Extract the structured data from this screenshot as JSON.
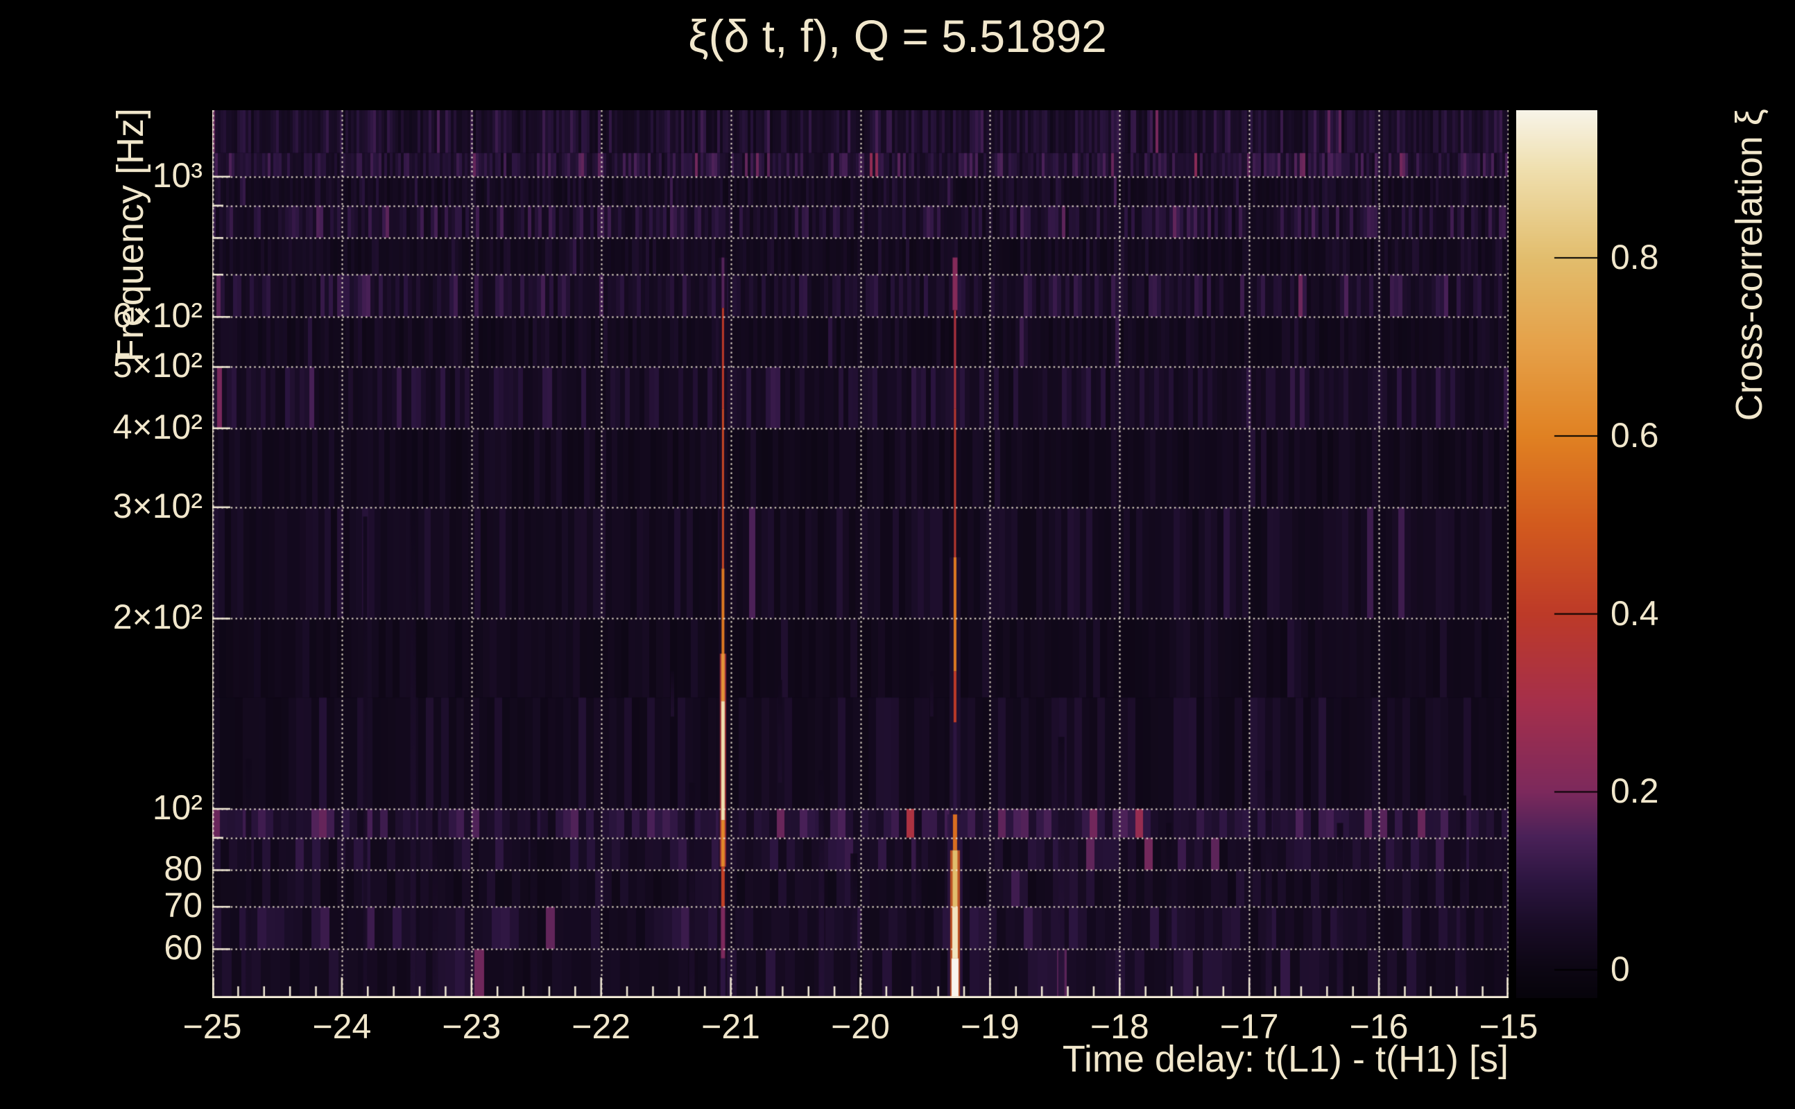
{
  "title": "ξ(δ t, f), Q = 5.51892",
  "colors": {
    "background": "#000000",
    "text": "#f1e7cc",
    "grid": "#f3ebd6",
    "colorbar_tick": "#000000"
  },
  "chart_data": {
    "type": "heatmap",
    "title": "ξ(δ t, f), Q = 5.51892",
    "xlabel": "Time delay: t(L1) - t(H1) [s]",
    "ylabel": "Frequency [Hz]",
    "colorbar_label": "Cross-correlation ξ",
    "x_range": [
      -25,
      -15
    ],
    "x_minor_step": 0.2,
    "x_tick_labels": [
      {
        "t": -25,
        "label": "−25"
      },
      {
        "t": -24,
        "label": "−24"
      },
      {
        "t": -23,
        "label": "−23"
      },
      {
        "t": -22,
        "label": "−22"
      },
      {
        "t": -21,
        "label": "−21"
      },
      {
        "t": -20,
        "label": "−20"
      },
      {
        "t": -19,
        "label": "−19"
      },
      {
        "t": -18,
        "label": "−18"
      },
      {
        "t": -17,
        "label": "−17"
      },
      {
        "t": -16,
        "label": "−16"
      },
      {
        "t": -15,
        "label": "−15"
      }
    ],
    "y_scale": "log",
    "y_range": [
      50.2,
      1274
    ],
    "y_gridlines": [
      1000,
      900,
      800,
      700,
      600,
      500,
      400,
      300,
      200,
      100,
      90,
      80,
      70,
      60
    ],
    "y_tick_labels": [
      {
        "f": 1000,
        "label": "10³"
      },
      {
        "f": 600,
        "label": "6×10²"
      },
      {
        "f": 500,
        "label": "5×10²"
      },
      {
        "f": 400,
        "label": "4×10²"
      },
      {
        "f": 300,
        "label": "3×10²"
      },
      {
        "f": 200,
        "label": "2×10²"
      },
      {
        "f": 100,
        "label": "10²"
      },
      {
        "f": 80,
        "label": "80"
      },
      {
        "f": 70,
        "label": "70"
      },
      {
        "f": 60,
        "label": "60"
      }
    ],
    "colorbar": {
      "range": [
        -0.031,
        0.966
      ],
      "ticks": [
        {
          "v": 0.8,
          "label": "0.8"
        },
        {
          "v": 0.6,
          "label": "0.6"
        },
        {
          "v": 0.4,
          "label": "0.4"
        },
        {
          "v": 0.2,
          "label": "0.2"
        },
        {
          "v": 0.0,
          "label": "0"
        }
      ],
      "stops": [
        [
          -0.04,
          "#050308"
        ],
        [
          0.0,
          "#0c0613"
        ],
        [
          0.05,
          "#190c26"
        ],
        [
          0.1,
          "#2c1540"
        ],
        [
          0.15,
          "#4a2158"
        ],
        [
          0.2,
          "#7c295c"
        ],
        [
          0.3,
          "#a52f4b"
        ],
        [
          0.4,
          "#bd3a28"
        ],
        [
          0.5,
          "#d25a1e"
        ],
        [
          0.6,
          "#e08122"
        ],
        [
          0.7,
          "#e5a048"
        ],
        [
          0.8,
          "#e2bd6d"
        ],
        [
          0.9,
          "#efdfae"
        ],
        [
          0.97,
          "#f8f5ec"
        ],
        [
          1.0,
          "#fbfaf5"
        ]
      ]
    },
    "noise_bands": [
      {
        "f": [
          1274,
          1090
        ],
        "base": 0.03,
        "stripe": 0.085,
        "cw": 4
      },
      {
        "f": [
          1090,
          1000
        ],
        "base": 0.045,
        "stripe": 0.11,
        "cw": 4
      },
      {
        "f": [
          1000,
          900
        ],
        "base": 0.018,
        "stripe": 0.055,
        "cw": 4
      },
      {
        "f": [
          900,
          800
        ],
        "base": 0.032,
        "stripe": 0.095,
        "cw": 5
      },
      {
        "f": [
          800,
          700
        ],
        "base": 0.016,
        "stripe": 0.05,
        "cw": 5
      },
      {
        "f": [
          700,
          600
        ],
        "base": 0.03,
        "stripe": 0.09,
        "cw": 6
      },
      {
        "f": [
          600,
          500
        ],
        "base": 0.014,
        "stripe": 0.045,
        "cw": 6
      },
      {
        "f": [
          500,
          400
        ],
        "base": 0.026,
        "stripe": 0.075,
        "cw": 7
      },
      {
        "f": [
          400,
          300
        ],
        "base": 0.012,
        "stripe": 0.04,
        "cw": 8
      },
      {
        "f": [
          300,
          200
        ],
        "base": 0.018,
        "stripe": 0.05,
        "cw": 9
      },
      {
        "f": [
          200,
          150
        ],
        "base": 0.012,
        "stripe": 0.04,
        "cw": 10
      },
      {
        "f": [
          150,
          100
        ],
        "base": 0.016,
        "stripe": 0.05,
        "cw": 11
      },
      {
        "f": [
          100,
          90
        ],
        "base": 0.045,
        "stripe": 0.11,
        "cw": 11
      },
      {
        "f": [
          90,
          80
        ],
        "base": 0.028,
        "stripe": 0.08,
        "cw": 12
      },
      {
        "f": [
          80,
          70
        ],
        "base": 0.018,
        "stripe": 0.06,
        "cw": 12
      },
      {
        "f": [
          70,
          60
        ],
        "base": 0.028,
        "stripe": 0.08,
        "cw": 13
      },
      {
        "f": [
          60,
          50.2
        ],
        "base": 0.02,
        "stripe": 0.07,
        "cw": 14
      }
    ],
    "streaks": [
      {
        "name": "correlation-streak-1",
        "t": -21.06,
        "glow": [
          [
            745,
            50.2,
            0.05,
            12
          ],
          [
            176,
            81,
            0.35,
            9
          ]
        ],
        "core": [
          [
            745,
            620,
            0.16,
            4
          ],
          [
            620,
            430,
            0.4,
            3
          ],
          [
            430,
            240,
            0.44,
            3
          ],
          [
            240,
            176,
            0.58,
            4
          ],
          [
            176,
            148,
            0.66,
            5
          ],
          [
            148,
            96,
            0.9,
            5
          ],
          [
            96,
            81,
            0.62,
            5
          ],
          [
            81,
            70,
            0.42,
            5
          ],
          [
            70,
            58,
            0.2,
            6
          ],
          [
            58,
            50.2,
            0.1,
            7
          ]
        ]
      },
      {
        "name": "correlation-streak-2",
        "t": -19.27,
        "glow": [
          [
            250,
            50.2,
            0.07,
            16
          ],
          [
            98,
            50.2,
            0.1,
            22
          ],
          [
            86,
            50.2,
            0.5,
            14
          ]
        ],
        "core": [
          [
            745,
            615,
            0.22,
            7
          ],
          [
            615,
            430,
            0.34,
            3
          ],
          [
            430,
            250,
            0.38,
            3
          ],
          [
            250,
            165,
            0.58,
            4
          ],
          [
            165,
            137,
            0.4,
            4
          ],
          [
            137,
            98,
            0.1,
            5
          ],
          [
            98,
            86,
            0.55,
            6
          ],
          [
            86,
            70,
            0.8,
            7
          ],
          [
            70,
            58,
            0.92,
            8
          ],
          [
            58,
            50.2,
            0.97,
            10
          ]
        ]
      }
    ],
    "minor_streaks": [
      [
        -24.72,
        120,
        50.2,
        0.05,
        8
      ],
      [
        -23.82,
        290,
        50.2,
        0.055,
        6
      ],
      [
        -23.45,
        300,
        50.2,
        0.075,
        8
      ],
      [
        -23.28,
        100,
        50.2,
        0.06,
        8
      ],
      [
        -22.52,
        100,
        50.2,
        0.05,
        10
      ],
      [
        -21.45,
        165,
        140,
        0.07,
        5
      ],
      [
        -21.3,
        110,
        50.2,
        0.06,
        8
      ],
      [
        -20.62,
        160,
        110,
        0.06,
        6
      ],
      [
        -20.3,
        115,
        50.2,
        0.085,
        8
      ],
      [
        -20.05,
        85,
        50.2,
        0.065,
        10
      ],
      [
        -19.55,
        100,
        50.2,
        0.055,
        8
      ],
      [
        -19.45,
        165,
        140,
        0.06,
        5
      ],
      [
        -18.45,
        130,
        50.2,
        0.085,
        9
      ],
      [
        -17.62,
        95,
        50.2,
        0.055,
        8
      ],
      [
        -16.85,
        115,
        50.2,
        0.075,
        9
      ],
      [
        -16.3,
        95,
        50.2,
        0.075,
        9
      ],
      [
        -15.35,
        105,
        50.2,
        0.065,
        9
      ]
    ]
  }
}
